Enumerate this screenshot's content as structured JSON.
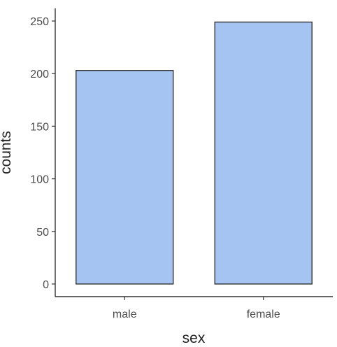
{
  "chart_data": {
    "type": "bar",
    "title": "",
    "xlabel": "sex",
    "ylabel": "counts",
    "categories": [
      "male",
      "female"
    ],
    "values": [
      203,
      249
    ],
    "ylim": [
      -12,
      262
    ],
    "yticks": [
      0,
      50,
      100,
      150,
      200,
      250
    ],
    "ytick_labels": [
      "0",
      "50",
      "100",
      "150",
      "200",
      "250"
    ],
    "grid": false,
    "legend": "none",
    "colors": {
      "bar_fill": "#a6c4f2",
      "bar_stroke": "#333333",
      "axis": "#333333",
      "tick_text": "#4d4d4d",
      "label_text": "#222222"
    }
  }
}
